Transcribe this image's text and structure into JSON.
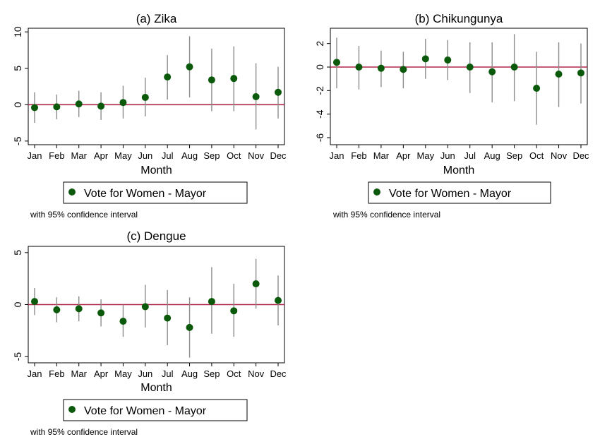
{
  "colors": {
    "marker": "#0b5a0b",
    "ci_line": "#8c8c8c",
    "zero_line": "#b0254a",
    "frame": "#000000"
  },
  "chart_data": [
    {
      "type": "scatter",
      "title": "(a) Zika",
      "xlabel": "Month",
      "ylabel": "",
      "categories": [
        "Jan",
        "Feb",
        "Mar",
        "Apr",
        "May",
        "Jun",
        "Jul",
        "Aug",
        "Sep",
        "Oct",
        "Nov",
        "Dec"
      ],
      "yticks": [
        "10",
        "5",
        "0",
        "-5"
      ],
      "ylim": [
        -5.5,
        10.5
      ],
      "ytick_values": [
        10,
        5,
        0,
        -5
      ],
      "reference_line": 0,
      "series": [
        {
          "name": "Vote for Women - Mayor",
          "values": [
            -0.4,
            -0.3,
            0.1,
            -0.2,
            0.3,
            1.0,
            3.8,
            5.2,
            3.4,
            3.6,
            1.1,
            1.7
          ],
          "ci_low": [
            -2.5,
            -2.0,
            -1.7,
            -2.1,
            -1.9,
            -1.6,
            0.7,
            1.0,
            -0.9,
            -0.9,
            -3.4,
            -1.9
          ],
          "ci_high": [
            1.7,
            1.4,
            1.9,
            1.7,
            2.6,
            3.7,
            6.8,
            9.4,
            7.7,
            8.0,
            5.7,
            5.2
          ]
        }
      ],
      "legend_label": "Vote for Women - Mayor",
      "note": "with 95% confidence interval"
    },
    {
      "type": "scatter",
      "title": "(b) Chikungunya",
      "xlabel": "Month",
      "ylabel": "",
      "categories": [
        "Jan",
        "Feb",
        "Mar",
        "Apr",
        "May",
        "Jun",
        "Jul",
        "Aug",
        "Sep",
        "Oct",
        "Nov",
        "Dec"
      ],
      "yticks": [
        "2",
        "0",
        "-2",
        "-4",
        "-6"
      ],
      "ylim": [
        -6.6,
        3.3
      ],
      "ytick_values": [
        2,
        0,
        -2,
        -4,
        -6
      ],
      "reference_line": 0,
      "series": [
        {
          "name": "Vote for Women - Mayor",
          "values": [
            0.4,
            0.0,
            -0.1,
            -0.2,
            0.7,
            0.6,
            0.0,
            -0.4,
            0.0,
            -1.8,
            -0.6,
            -0.5
          ],
          "ci_low": [
            -1.8,
            -1.9,
            -1.7,
            -1.8,
            -1.0,
            -1.1,
            -2.2,
            -3.0,
            -2.9,
            -4.9,
            -3.4,
            -3.1
          ],
          "ci_high": [
            2.5,
            1.8,
            1.4,
            1.3,
            2.4,
            2.3,
            2.1,
            2.1,
            2.8,
            1.3,
            2.1,
            2.0
          ]
        }
      ],
      "legend_label": "Vote for Women - Mayor",
      "note": "with 95% confidence interval"
    },
    {
      "type": "scatter",
      "title": "(c) Dengue",
      "xlabel": "Month",
      "ylabel": "",
      "categories": [
        "Jan",
        "Feb",
        "Mar",
        "Apr",
        "May",
        "Jun",
        "Jul",
        "Aug",
        "Sep",
        "Oct",
        "Nov",
        "Dec"
      ],
      "yticks": [
        "5",
        "0",
        "-5"
      ],
      "ylim": [
        -5.6,
        5.6
      ],
      "ytick_values": [
        5,
        0,
        -5
      ],
      "reference_line": 0,
      "series": [
        {
          "name": "Vote for Women - Mayor",
          "values": [
            0.3,
            -0.5,
            -0.4,
            -0.8,
            -1.6,
            -0.2,
            -1.3,
            -2.2,
            0.3,
            -0.6,
            2.0,
            0.4
          ],
          "ci_low": [
            -1.0,
            -1.7,
            -1.6,
            -2.1,
            -3.1,
            -2.2,
            -3.9,
            -5.1,
            -2.8,
            -3.1,
            -0.4,
            -2.0
          ],
          "ci_high": [
            1.6,
            0.7,
            0.8,
            0.5,
            0.0,
            1.9,
            1.4,
            0.7,
            3.6,
            2.0,
            4.4,
            2.8
          ]
        }
      ],
      "legend_label": "Vote for Women - Mayor",
      "note": "with 95% confidence interval"
    }
  ]
}
